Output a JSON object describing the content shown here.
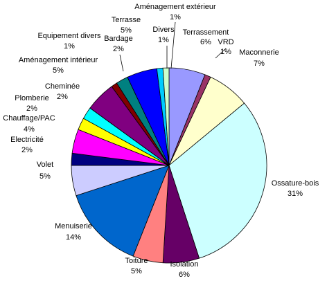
{
  "chart_data": {
    "type": "pie",
    "slices": [
      {
        "label": "Terrassement",
        "pct_text": "6%",
        "value": 6,
        "color": "#9999ff"
      },
      {
        "label": "VRD",
        "pct_text": "1%",
        "value": 1,
        "color": "#993366"
      },
      {
        "label": "Maconnerie",
        "pct_text": "7%",
        "value": 7,
        "color": "#ffffcc"
      },
      {
        "label": "Ossature-bois",
        "pct_text": "31%",
        "value": 31,
        "color": "#ccffff"
      },
      {
        "label": "Isolation",
        "pct_text": "6%",
        "value": 6,
        "color": "#660066"
      },
      {
        "label": "Toiture",
        "pct_text": "5%",
        "value": 5,
        "color": "#ff8080"
      },
      {
        "label": "Menuiserie",
        "pct_text": "14%",
        "value": 14,
        "color": "#0066cc"
      },
      {
        "label": "Volet",
        "pct_text": "5%",
        "value": 5,
        "color": "#ccccff"
      },
      {
        "label": "Electricité",
        "pct_text": "2%",
        "value": 2,
        "color": "#000080"
      },
      {
        "label": "Chauffage/PAC",
        "pct_text": "4%",
        "value": 4,
        "color": "#ff00ff"
      },
      {
        "label": "Plomberie",
        "pct_text": "2%",
        "value": 2,
        "color": "#ffff00"
      },
      {
        "label": "Cheminée",
        "pct_text": "2%",
        "value": 2,
        "color": "#00ffff"
      },
      {
        "label": "Aménagement intérieur",
        "pct_text": "5%",
        "value": 5,
        "color": "#800080"
      },
      {
        "label": "Equipement divers",
        "pct_text": "1%",
        "value": 1,
        "color": "#800000"
      },
      {
        "label": "Bardage",
        "pct_text": "2%",
        "value": 2,
        "color": "#008080"
      },
      {
        "label": "Terrasse",
        "pct_text": "5%",
        "value": 5,
        "color": "#0000ff"
      },
      {
        "label": "Divers",
        "pct_text": "1%",
        "value": 1,
        "color": "#00ccff"
      },
      {
        "label": "Aménagement extérieur",
        "pct_text": "1%",
        "value": 1,
        "color": "#ccffcc"
      }
    ]
  }
}
